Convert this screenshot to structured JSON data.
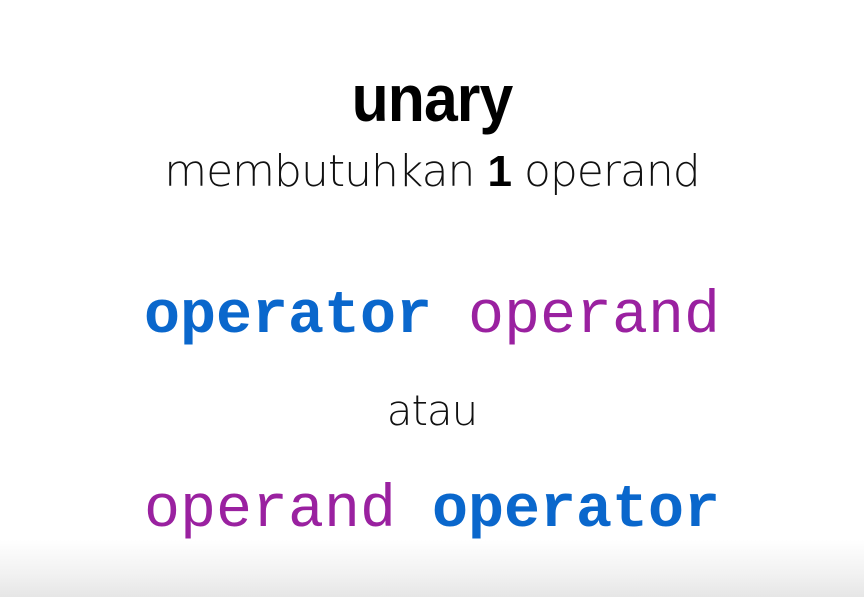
{
  "slide": {
    "title": "unary",
    "subtitle": {
      "before": "membutuhkan",
      "number": "1",
      "after": "operand"
    },
    "line1": {
      "first": "operator",
      "second": "operand"
    },
    "separator": "atau",
    "line2": {
      "first": "operand",
      "second": "operator"
    }
  },
  "colors": {
    "operator": "#0a67cc",
    "operand": "#9a21a0",
    "text": "#111111"
  }
}
